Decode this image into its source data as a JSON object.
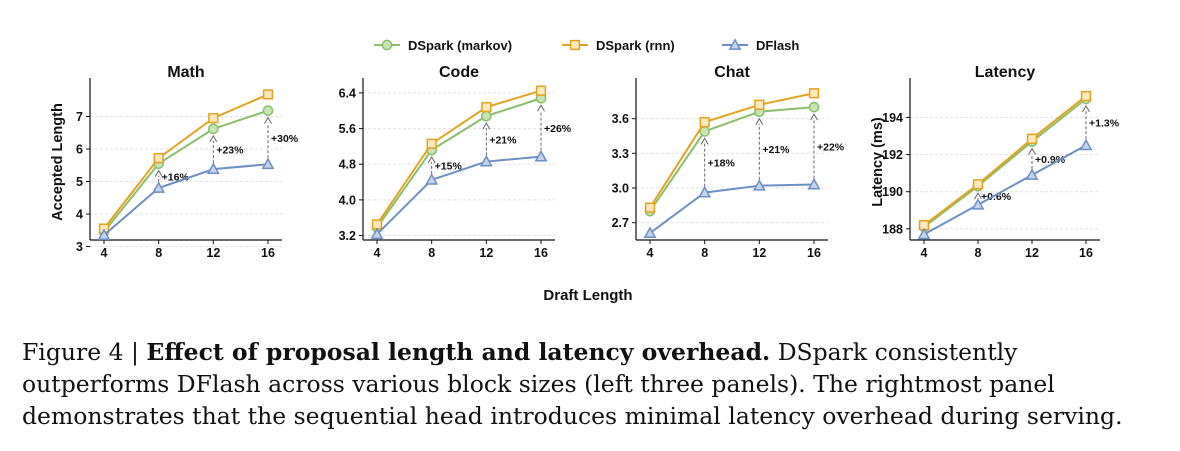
{
  "legend": [
    {
      "name": "DSpark (markov)",
      "color": "#8bbf6a",
      "fill": "#c8e3b4",
      "marker": "circle"
    },
    {
      "name": "DSpark (rnn)",
      "color": "#e2a321",
      "fill": "#fbe8bd",
      "marker": "square"
    },
    {
      "name": "DFlash",
      "color": "#6d8fc3",
      "fill": "#c3d3ec",
      "marker": "triangle"
    }
  ],
  "shared_xlabel": "Draft Length",
  "chart_data": [
    {
      "type": "line",
      "title": "Math",
      "ylabel": "Accepted Length",
      "x": [
        4,
        8,
        12,
        16
      ],
      "ylim": [
        3.2,
        8.0
      ],
      "yticks": [
        3,
        4,
        5,
        6,
        7
      ],
      "grid": true,
      "series": [
        {
          "name": "DSpark (markov)",
          "values": [
            3.45,
            5.55,
            6.62,
            7.18
          ]
        },
        {
          "name": "DSpark (rnn)",
          "values": [
            3.55,
            5.72,
            6.95,
            7.68
          ]
        },
        {
          "name": "DFlash",
          "values": [
            3.35,
            4.8,
            5.38,
            5.53
          ]
        }
      ],
      "annotations": [
        {
          "x": 8,
          "text": "+16%"
        },
        {
          "x": 12,
          "text": "+23%"
        },
        {
          "x": 16,
          "text": "+30%"
        }
      ]
    },
    {
      "type": "line",
      "title": "Code",
      "ylabel": "",
      "x": [
        4,
        8,
        12,
        16
      ],
      "ylim": [
        3.1,
        6.6
      ],
      "yticks": [
        "3.2",
        "4.0",
        "4.8",
        "5.6",
        "6.4"
      ],
      "grid": true,
      "series": [
        {
          "name": "DSpark (markov)",
          "values": [
            3.38,
            5.12,
            5.88,
            6.28
          ]
        },
        {
          "name": "DSpark (rnn)",
          "values": [
            3.45,
            5.26,
            6.08,
            6.45
          ]
        },
        {
          "name": "DFlash",
          "values": [
            3.23,
            4.45,
            4.86,
            4.97
          ]
        }
      ],
      "annotations": [
        {
          "x": 8,
          "text": "+15%"
        },
        {
          "x": 12,
          "text": "+21%"
        },
        {
          "x": 16,
          "text": "+26%"
        }
      ]
    },
    {
      "type": "line",
      "title": "Chat",
      "ylabel": "",
      "x": [
        4,
        8,
        12,
        16
      ],
      "ylim": [
        2.55,
        3.9
      ],
      "yticks": [
        "2.7",
        "3.0",
        "3.3",
        "3.6"
      ],
      "grid": true,
      "series": [
        {
          "name": "DSpark (markov)",
          "values": [
            2.8,
            3.49,
            3.66,
            3.7
          ]
        },
        {
          "name": "DSpark (rnn)",
          "values": [
            2.83,
            3.57,
            3.72,
            3.82
          ]
        },
        {
          "name": "DFlash",
          "values": [
            2.61,
            2.96,
            3.02,
            3.03
          ]
        }
      ],
      "annotations": [
        {
          "x": 8,
          "text": "+18%"
        },
        {
          "x": 12,
          "text": "+21%"
        },
        {
          "x": 16,
          "text": "+22%"
        }
      ]
    },
    {
      "type": "line",
      "title": "Latency",
      "ylabel": "Latency (ms)",
      "x": [
        4,
        8,
        12,
        16
      ],
      "ylim": [
        187.4,
        195.8
      ],
      "yticks": [
        188,
        190,
        192,
        194
      ],
      "grid": true,
      "series": [
        {
          "name": "DSpark (markov)",
          "values": [
            188.1,
            190.3,
            192.7,
            195.0
          ]
        },
        {
          "name": "DSpark (rnn)",
          "values": [
            188.2,
            190.4,
            192.85,
            195.15
          ]
        },
        {
          "name": "DFlash",
          "values": [
            187.7,
            189.3,
            190.9,
            192.5
          ]
        }
      ],
      "annotations": [
        {
          "x": 8,
          "text": "+0.6%"
        },
        {
          "x": 12,
          "text": "+0.9%"
        },
        {
          "x": 16,
          "text": "+1.3%"
        }
      ]
    }
  ],
  "caption": {
    "label": "Figure 4 | ",
    "bold": "Effect of proposal length and latency overhead.",
    "text": " DSpark consistently outperforms DFlash across various block sizes (left three panels). The rightmost panel demonstrates that the sequential head introduces minimal latency overhead during serving."
  }
}
